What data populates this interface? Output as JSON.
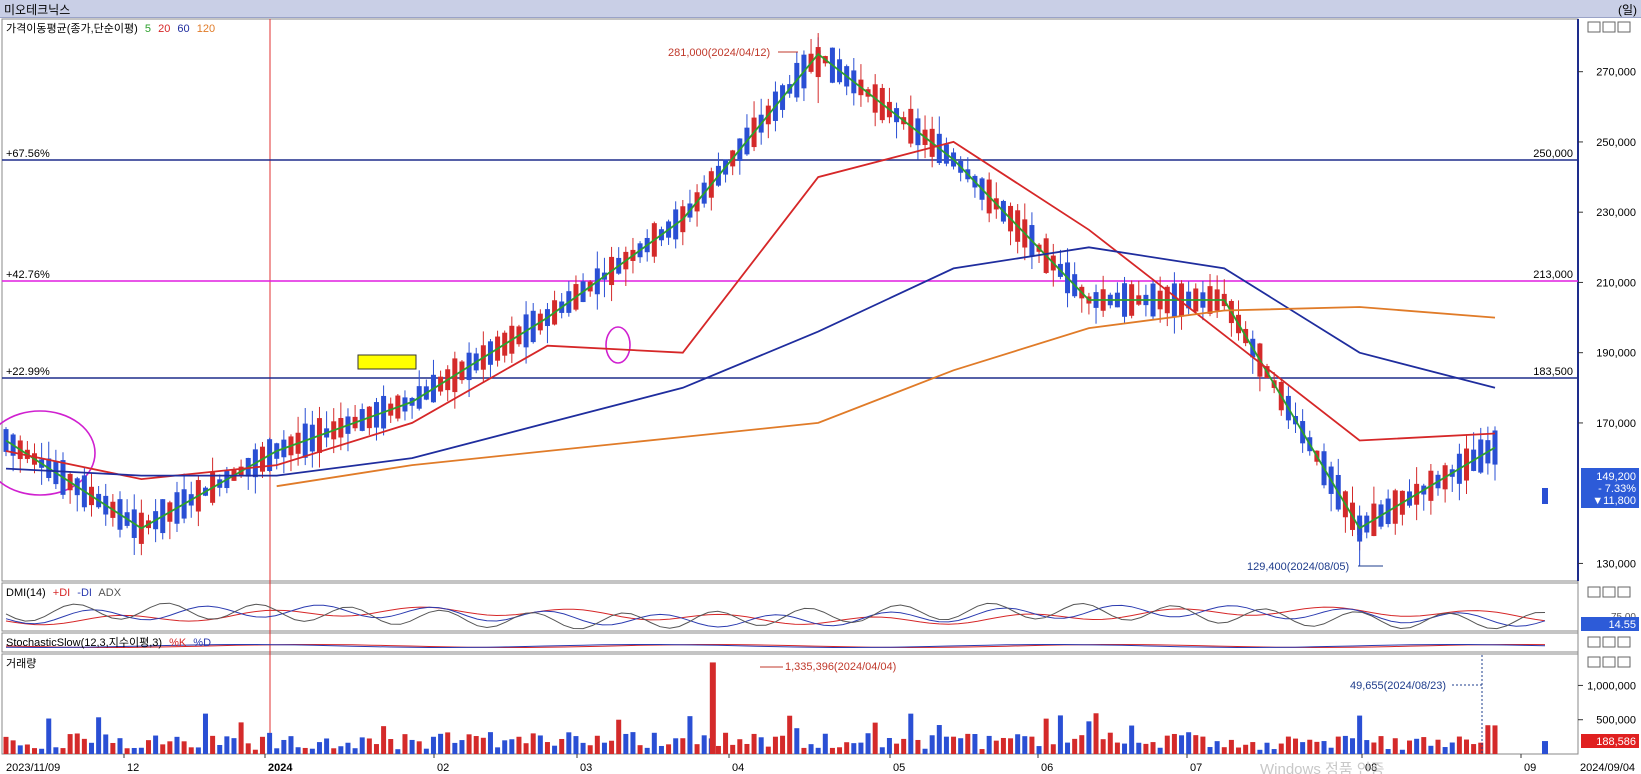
{
  "window": {
    "title": "미오테크닉스",
    "unit": "(일)"
  },
  "legend": {
    "price_panel": "가격이동평균(종가,단순이평)",
    "ma_periods": [
      {
        "label": "5",
        "color": "#2ca02c"
      },
      {
        "label": "20",
        "color": "#d62728"
      },
      {
        "label": "60",
        "color": "#1f2d9e"
      },
      {
        "label": "120",
        "color": "#e07b28"
      }
    ],
    "dmi_panel": "DMI(14)",
    "dmi_lines": [
      {
        "label": "+DI",
        "color": "#d62728"
      },
      {
        "label": "-DI",
        "color": "#2b3bb0"
      },
      {
        "label": "ADX",
        "color": "#555555"
      }
    ],
    "stoch_panel": "StochasticSlow(12,3,지수이평,3)",
    "stoch_lines": [
      {
        "label": "%K",
        "color": "#d62728"
      },
      {
        "label": "%D",
        "color": "#2b3bb0"
      }
    ],
    "volume_panel": "거래량"
  },
  "annotations": {
    "high_label": "281,000(2024/04/12)",
    "low_label": "129,400(2024/08/05)",
    "vol_high_label": "1,335,396(2024/04/04)",
    "vol_mark_label": "49,655(2024/08/23)",
    "h1_pct": "+67.56%",
    "h1_price": "250,000",
    "h2_pct": "+42.76%",
    "h2_price": "213,000",
    "h3_pct": "+22.99%",
    "h3_price": "183,500"
  },
  "current": {
    "price": "149,200",
    "change_pct": "- 7.33%",
    "change": "▼11,800",
    "dmi_value": "14.55",
    "volume_value": "188,586",
    "dmi_axis": "75.00"
  },
  "axes": {
    "price_ticks": [
      "270,000",
      "250,000",
      "230,000",
      "210,000",
      "190,000",
      "170,000",
      "130,000"
    ],
    "volume_ticks": [
      "1,000,000",
      "500,000"
    ],
    "x_labels": [
      "2023/11/09",
      "12",
      "2024",
      "02",
      "03",
      "04",
      "05",
      "06",
      "07",
      "08",
      "09",
      "2024/09/04"
    ],
    "watermark": "Windows 정품 인증"
  },
  "chart_data": {
    "type": "line",
    "title": "미오테크닉스",
    "x": [
      "2023/11/09",
      "2023/12",
      "2024/01",
      "2024/02",
      "2024/03",
      "2024/04",
      "2024/04/12",
      "2024/05",
      "2024/06",
      "2024/07",
      "2024/08/05",
      "2024/09/04"
    ],
    "series": [
      {
        "name": "5",
        "values": [
          165000,
          140000,
          162000,
          176000,
          200000,
          228000,
          275000,
          245000,
          205000,
          205000,
          140000,
          163000
        ]
      },
      {
        "name": "20",
        "values": [
          162000,
          154000,
          158000,
          170000,
          192000,
          190000,
          240000,
          250000,
          225000,
          195000,
          165000,
          167000
        ]
      },
      {
        "name": "60",
        "values": [
          157000,
          155000,
          155000,
          160000,
          170000,
          180000,
          196000,
          214000,
          220000,
          214000,
          190000,
          180000
        ]
      },
      {
        "name": "120",
        "values": [
          null,
          null,
          152000,
          158000,
          162000,
          166000,
          170000,
          185000,
          197000,
          202000,
          203000,
          200000
        ]
      }
    ],
    "ylim": [
      125000,
      285000
    ],
    "high": {
      "value": 281000,
      "date": "2024/04/12"
    },
    "low": {
      "value": 129400,
      "date": "2024/08/05"
    },
    "levels": [
      {
        "value": 250000,
        "pct": "+67.56%"
      },
      {
        "value": 213000,
        "pct": "+42.76%"
      },
      {
        "value": 183500,
        "pct": "+22.99%"
      }
    ],
    "last_close": 149200,
    "volume": {
      "max": {
        "value": 1335396,
        "date": "2024/04/04"
      },
      "marked": {
        "value": 49655,
        "date": "2024/08/23"
      },
      "last": 188586,
      "ylim": [
        0,
        1400000
      ]
    }
  }
}
